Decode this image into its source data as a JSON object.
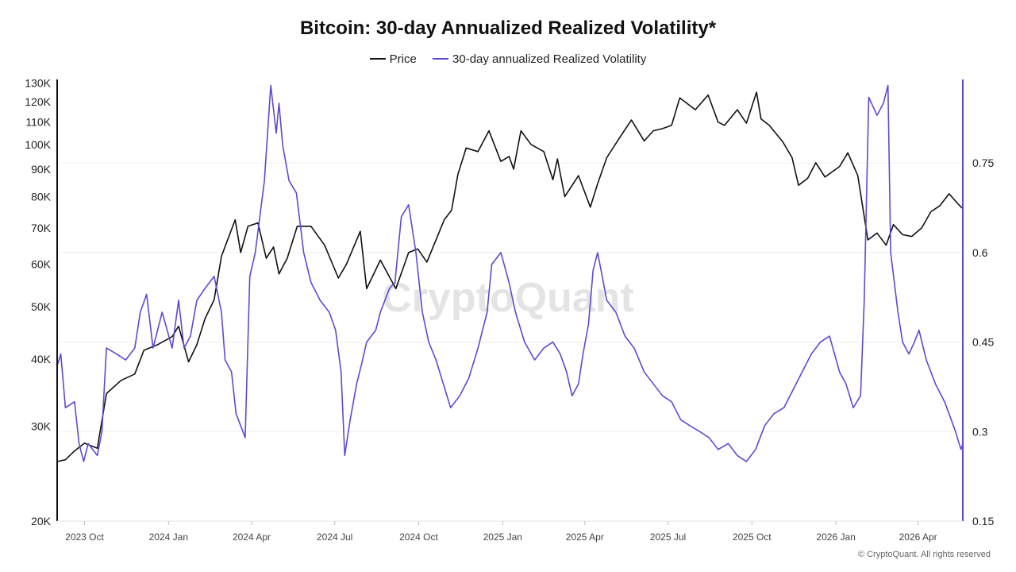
{
  "title": "Bitcoin: 30-day Annualized Realized Volatility*",
  "watermark": "CryptoQuant",
  "copyright": "© CryptoQuant. All rights reserved",
  "legend": [
    {
      "label": "Price",
      "color": "#111111"
    },
    {
      "label": "30-day annualized Realized Volatility",
      "color": "#5b4bd3"
    }
  ],
  "chart_data": {
    "type": "line",
    "title": "Bitcoin: 30-day Annualized Realized Volatility*",
    "x_range": [
      "2023-09-01",
      "2026-05-20"
    ],
    "x_tick_labels": [
      {
        "date": "2023-10-01",
        "label": "2023 Oct"
      },
      {
        "date": "2024-01-01",
        "label": "2024 Jan"
      },
      {
        "date": "2024-04-01",
        "label": "2024 Apr"
      },
      {
        "date": "2024-07-01",
        "label": "2024 Jul"
      },
      {
        "date": "2024-10-01",
        "label": "2024 Oct"
      },
      {
        "date": "2025-01-01",
        "label": "2025 Jan"
      },
      {
        "date": "2025-04-01",
        "label": "2025 Apr"
      },
      {
        "date": "2025-07-01",
        "label": "2025 Jul"
      },
      {
        "date": "2025-10-01",
        "label": "2025 Oct"
      },
      {
        "date": "2026-01-01",
        "label": "2026 Jan"
      },
      {
        "date": "2026-04-01",
        "label": "2026 Apr"
      }
    ],
    "y_left": {
      "scale": "log",
      "range": [
        20000,
        132000
      ],
      "ticks": [
        {
          "value": 20000,
          "label": "20K"
        },
        {
          "value": 30000,
          "label": "30K"
        },
        {
          "value": 40000,
          "label": "40K"
        },
        {
          "value": 50000,
          "label": "50K"
        },
        {
          "value": 60000,
          "label": "60K"
        },
        {
          "value": 70000,
          "label": "70K"
        },
        {
          "value": 80000,
          "label": "80K"
        },
        {
          "value": 90000,
          "label": "90K"
        },
        {
          "value": 100000,
          "label": "100K"
        },
        {
          "value": 110000,
          "label": "110K"
        },
        {
          "value": 120000,
          "label": "120K"
        },
        {
          "value": 130000,
          "label": "130K"
        }
      ]
    },
    "y_right": {
      "scale": "linear",
      "range": [
        0.15,
        0.89
      ],
      "ticks": [
        {
          "value": 0.15,
          "label": "0.15"
        },
        {
          "value": 0.3,
          "label": "0.3"
        },
        {
          "value": 0.45,
          "label": "0.45"
        },
        {
          "value": 0.6,
          "label": "0.6"
        },
        {
          "value": 0.75,
          "label": "0.75"
        }
      ]
    },
    "grid": true,
    "legend_position": "top-center",
    "series": [
      {
        "name": "Price",
        "axis": "left",
        "color": "#111111",
        "points": [
          [
            "2023-09-01",
            25800
          ],
          [
            "2023-09-10",
            26000
          ],
          [
            "2023-09-20",
            27000
          ],
          [
            "2023-10-01",
            27900
          ],
          [
            "2023-10-15",
            27300
          ],
          [
            "2023-10-25",
            34500
          ],
          [
            "2023-11-10",
            36500
          ],
          [
            "2023-11-25",
            37500
          ],
          [
            "2023-12-05",
            41500
          ],
          [
            "2023-12-20",
            42500
          ],
          [
            "2024-01-05",
            44000
          ],
          [
            "2024-01-12",
            46000
          ],
          [
            "2024-01-23",
            39500
          ],
          [
            "2024-02-01",
            42500
          ],
          [
            "2024-02-10",
            47500
          ],
          [
            "2024-02-20",
            51500
          ],
          [
            "2024-02-28",
            62000
          ],
          [
            "2024-03-05",
            66000
          ],
          [
            "2024-03-14",
            72500
          ],
          [
            "2024-03-20",
            63000
          ],
          [
            "2024-03-28",
            70500
          ],
          [
            "2024-04-08",
            71500
          ],
          [
            "2024-04-17",
            61500
          ],
          [
            "2024-04-25",
            64500
          ],
          [
            "2024-05-01",
            57500
          ],
          [
            "2024-05-10",
            61500
          ],
          [
            "2024-05-21",
            70500
          ],
          [
            "2024-06-05",
            70500
          ],
          [
            "2024-06-20",
            65000
          ],
          [
            "2024-07-05",
            56500
          ],
          [
            "2024-07-14",
            60000
          ],
          [
            "2024-07-29",
            69000
          ],
          [
            "2024-08-05",
            54000
          ],
          [
            "2024-08-20",
            61000
          ],
          [
            "2024-09-06",
            54000
          ],
          [
            "2024-09-20",
            63000
          ],
          [
            "2024-09-30",
            64000
          ],
          [
            "2024-10-10",
            60500
          ],
          [
            "2024-10-29",
            72500
          ],
          [
            "2024-11-06",
            75500
          ],
          [
            "2024-11-13",
            88000
          ],
          [
            "2024-11-22",
            98500
          ],
          [
            "2024-12-05",
            97000
          ],
          [
            "2024-12-17",
            106000
          ],
          [
            "2024-12-30",
            93000
          ],
          [
            "2025-01-08",
            95000
          ],
          [
            "2025-01-13",
            90000
          ],
          [
            "2025-01-21",
            106000
          ],
          [
            "2025-02-01",
            100000
          ],
          [
            "2025-02-15",
            97000
          ],
          [
            "2025-02-25",
            86000
          ],
          [
            "2025-03-02",
            94000
          ],
          [
            "2025-03-10",
            80000
          ],
          [
            "2025-03-25",
            87500
          ],
          [
            "2025-04-07",
            76500
          ],
          [
            "2025-04-15",
            84500
          ],
          [
            "2025-04-25",
            94500
          ],
          [
            "2025-05-10",
            103500
          ],
          [
            "2025-05-22",
            111000
          ],
          [
            "2025-06-05",
            101500
          ],
          [
            "2025-06-15",
            106000
          ],
          [
            "2025-06-25",
            107000
          ],
          [
            "2025-07-05",
            108500
          ],
          [
            "2025-07-14",
            122000
          ],
          [
            "2025-07-31",
            116000
          ],
          [
            "2025-08-14",
            123500
          ],
          [
            "2025-08-25",
            110000
          ],
          [
            "2025-09-01",
            108500
          ],
          [
            "2025-09-15",
            116000
          ],
          [
            "2025-09-25",
            109500
          ],
          [
            "2025-10-06",
            125000
          ],
          [
            "2025-10-11",
            111500
          ],
          [
            "2025-10-20",
            108500
          ],
          [
            "2025-11-04",
            101000
          ],
          [
            "2025-11-14",
            94500
          ],
          [
            "2025-11-21",
            84000
          ],
          [
            "2025-12-01",
            86500
          ],
          [
            "2025-12-10",
            92500
          ],
          [
            "2025-12-20",
            87000
          ],
          [
            "2026-01-05",
            91000
          ],
          [
            "2026-01-14",
            96500
          ],
          [
            "2026-01-25",
            87500
          ],
          [
            "2026-02-05",
            66500
          ],
          [
            "2026-02-15",
            68500
          ],
          [
            "2026-02-25",
            65000
          ],
          [
            "2026-03-05",
            71000
          ],
          [
            "2026-03-15",
            68000
          ],
          [
            "2026-03-25",
            67500
          ],
          [
            "2026-04-05",
            70000
          ],
          [
            "2026-04-15",
            75000
          ],
          [
            "2026-04-25",
            77000
          ],
          [
            "2026-05-05",
            81000
          ],
          [
            "2026-05-15",
            77500
          ],
          [
            "2026-05-20",
            76000
          ]
        ]
      },
      {
        "name": "30-day annualized Realized Volatility",
        "axis": "right",
        "color": "#5b4bd3",
        "points": [
          [
            "2023-09-01",
            0.41
          ],
          [
            "2023-09-05",
            0.43
          ],
          [
            "2023-09-10",
            0.34
          ],
          [
            "2023-09-20",
            0.35
          ],
          [
            "2023-09-25",
            0.28
          ],
          [
            "2023-09-30",
            0.25
          ],
          [
            "2023-10-05",
            0.28
          ],
          [
            "2023-10-15",
            0.26
          ],
          [
            "2023-10-20",
            0.3
          ],
          [
            "2023-10-25",
            0.44
          ],
          [
            "2023-11-05",
            0.43
          ],
          [
            "2023-11-15",
            0.42
          ],
          [
            "2023-11-25",
            0.44
          ],
          [
            "2023-12-01",
            0.5
          ],
          [
            "2023-12-08",
            0.53
          ],
          [
            "2023-12-15",
            0.44
          ],
          [
            "2023-12-25",
            0.5
          ],
          [
            "2024-01-05",
            0.44
          ],
          [
            "2024-01-12",
            0.52
          ],
          [
            "2024-01-18",
            0.44
          ],
          [
            "2024-01-25",
            0.46
          ],
          [
            "2024-02-01",
            0.52
          ],
          [
            "2024-02-10",
            0.54
          ],
          [
            "2024-02-20",
            0.56
          ],
          [
            "2024-02-28",
            0.5
          ],
          [
            "2024-03-03",
            0.42
          ],
          [
            "2024-03-10",
            0.4
          ],
          [
            "2024-03-15",
            0.33
          ],
          [
            "2024-03-25",
            0.29
          ],
          [
            "2024-03-30",
            0.56
          ],
          [
            "2024-04-05",
            0.6
          ],
          [
            "2024-04-15",
            0.72
          ],
          [
            "2024-04-22",
            0.88
          ],
          [
            "2024-04-28",
            0.8
          ],
          [
            "2024-05-01",
            0.85
          ],
          [
            "2024-05-05",
            0.78
          ],
          [
            "2024-05-12",
            0.72
          ],
          [
            "2024-05-20",
            0.7
          ],
          [
            "2024-05-28",
            0.6
          ],
          [
            "2024-06-05",
            0.55
          ],
          [
            "2024-06-15",
            0.52
          ],
          [
            "2024-06-25",
            0.5
          ],
          [
            "2024-07-02",
            0.47
          ],
          [
            "2024-07-08",
            0.4
          ],
          [
            "2024-07-12",
            0.26
          ],
          [
            "2024-07-18",
            0.32
          ],
          [
            "2024-07-25",
            0.38
          ],
          [
            "2024-07-30",
            0.41
          ],
          [
            "2024-08-05",
            0.45
          ],
          [
            "2024-08-15",
            0.47
          ],
          [
            "2024-08-20",
            0.5
          ],
          [
            "2024-08-30",
            0.54
          ],
          [
            "2024-09-05",
            0.55
          ],
          [
            "2024-09-12",
            0.66
          ],
          [
            "2024-09-20",
            0.68
          ],
          [
            "2024-09-28",
            0.6
          ],
          [
            "2024-10-05",
            0.5
          ],
          [
            "2024-10-12",
            0.45
          ],
          [
            "2024-10-20",
            0.42
          ],
          [
            "2024-10-28",
            0.38
          ],
          [
            "2024-11-05",
            0.34
          ],
          [
            "2024-11-15",
            0.36
          ],
          [
            "2024-11-25",
            0.39
          ],
          [
            "2024-12-05",
            0.44
          ],
          [
            "2024-12-15",
            0.5
          ],
          [
            "2024-12-20",
            0.58
          ],
          [
            "2024-12-30",
            0.6
          ],
          [
            "2025-01-08",
            0.55
          ],
          [
            "2025-01-15",
            0.5
          ],
          [
            "2025-01-25",
            0.45
          ],
          [
            "2025-02-05",
            0.42
          ],
          [
            "2025-02-15",
            0.44
          ],
          [
            "2025-02-25",
            0.45
          ],
          [
            "2025-03-05",
            0.43
          ],
          [
            "2025-03-12",
            0.4
          ],
          [
            "2025-03-18",
            0.36
          ],
          [
            "2025-03-25",
            0.38
          ],
          [
            "2025-03-30",
            0.43
          ],
          [
            "2025-04-05",
            0.48
          ],
          [
            "2025-04-10",
            0.57
          ],
          [
            "2025-04-15",
            0.6
          ],
          [
            "2025-04-20",
            0.56
          ],
          [
            "2025-04-25",
            0.52
          ],
          [
            "2025-05-05",
            0.5
          ],
          [
            "2025-05-15",
            0.46
          ],
          [
            "2025-05-25",
            0.44
          ],
          [
            "2025-06-05",
            0.4
          ],
          [
            "2025-06-15",
            0.38
          ],
          [
            "2025-06-25",
            0.36
          ],
          [
            "2025-07-05",
            0.35
          ],
          [
            "2025-07-15",
            0.32
          ],
          [
            "2025-07-25",
            0.31
          ],
          [
            "2025-08-05",
            0.3
          ],
          [
            "2025-08-15",
            0.29
          ],
          [
            "2025-08-25",
            0.27
          ],
          [
            "2025-09-05",
            0.28
          ],
          [
            "2025-09-15",
            0.26
          ],
          [
            "2025-09-25",
            0.25
          ],
          [
            "2025-10-05",
            0.27
          ],
          [
            "2025-10-15",
            0.31
          ],
          [
            "2025-10-25",
            0.33
          ],
          [
            "2025-11-05",
            0.34
          ],
          [
            "2025-11-15",
            0.37
          ],
          [
            "2025-11-25",
            0.4
          ],
          [
            "2025-12-05",
            0.43
          ],
          [
            "2025-12-15",
            0.45
          ],
          [
            "2025-12-25",
            0.46
          ],
          [
            "2026-01-05",
            0.4
          ],
          [
            "2026-01-12",
            0.38
          ],
          [
            "2026-01-20",
            0.34
          ],
          [
            "2026-01-28",
            0.36
          ],
          [
            "2026-02-01",
            0.52
          ],
          [
            "2026-02-06",
            0.86
          ],
          [
            "2026-02-15",
            0.83
          ],
          [
            "2026-02-22",
            0.85
          ],
          [
            "2026-02-27",
            0.88
          ],
          [
            "2026-03-02",
            0.6
          ],
          [
            "2026-03-10",
            0.5
          ],
          [
            "2026-03-15",
            0.45
          ],
          [
            "2026-03-22",
            0.43
          ],
          [
            "2026-03-28",
            0.45
          ],
          [
            "2026-04-02",
            0.47
          ],
          [
            "2026-04-10",
            0.42
          ],
          [
            "2026-04-20",
            0.38
          ],
          [
            "2026-04-30",
            0.35
          ],
          [
            "2026-05-05",
            0.33
          ],
          [
            "2026-05-12",
            0.3
          ],
          [
            "2026-05-18",
            0.27
          ],
          [
            "2026-05-20",
            0.28
          ]
        ]
      }
    ]
  }
}
